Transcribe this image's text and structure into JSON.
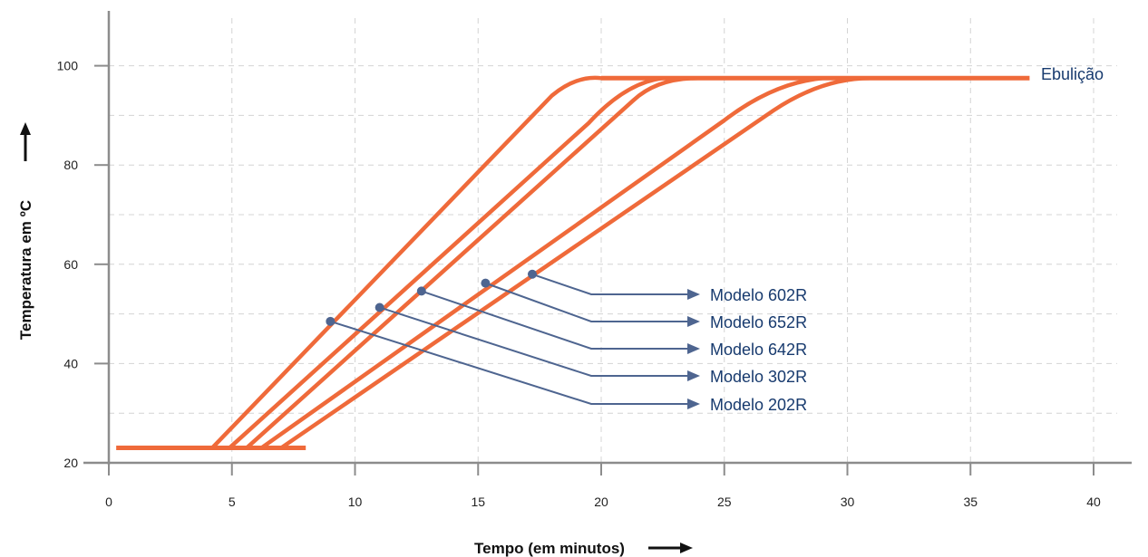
{
  "chart_data": {
    "type": "line",
    "title": "",
    "xlabel": "Tempo (em minutos)",
    "ylabel": "Temperatura em ºC",
    "xlim": [
      0,
      42
    ],
    "ylim": [
      18,
      108
    ],
    "x_ticks": [
      0,
      5,
      10,
      15,
      20,
      25,
      30,
      35,
      40
    ],
    "y_ticks": [
      20,
      40,
      60,
      80,
      100
    ],
    "grid": true,
    "colors": {
      "line": "#ef6a3a",
      "callout": "#4e6590",
      "label": "#173a6e",
      "axis": "#8c8c8c",
      "grid": "#d4d4d4"
    },
    "baseline": {
      "x": [
        0.3,
        8.0
      ],
      "y": 23
    },
    "boil_line": {
      "x_end": 37.4,
      "y": 97.5,
      "label": "Ebulição"
    },
    "series": [
      {
        "name": "Modelo 202R",
        "points": [
          [
            4.2,
            23
          ],
          [
            9,
            48.5
          ],
          [
            18,
            94
          ],
          [
            19,
            97
          ],
          [
            20,
            97.5
          ]
        ],
        "marker": [
          9,
          48.5
        ]
      },
      {
        "name": "Modelo 302R",
        "points": [
          [
            4.9,
            23
          ],
          [
            11,
            51.3
          ],
          [
            19.5,
            88.5
          ],
          [
            21,
            95.5
          ],
          [
            22.5,
            97.5
          ]
        ],
        "marker": [
          11,
          51.3
        ]
      },
      {
        "name": "Modelo 642R",
        "points": [
          [
            5.6,
            23
          ],
          [
            12.7,
            54.6
          ],
          [
            21.3,
            93
          ],
          [
            22.3,
            96.5
          ],
          [
            24,
            97.5
          ]
        ],
        "marker": [
          12.7,
          54.6
        ]
      },
      {
        "name": "Modelo 652R",
        "points": [
          [
            6.2,
            23
          ],
          [
            15.3,
            56.2
          ],
          [
            25,
            89
          ],
          [
            27,
            95.5
          ],
          [
            29,
            97.5
          ]
        ],
        "marker": [
          15.3,
          56.2
        ]
      },
      {
        "name": "Modelo 602R",
        "points": [
          [
            7.0,
            23
          ],
          [
            17.2,
            58
          ],
          [
            27,
            91
          ],
          [
            29,
            96.5
          ],
          [
            31,
            97.5
          ]
        ],
        "marker": [
          17.2,
          58
        ]
      }
    ]
  }
}
